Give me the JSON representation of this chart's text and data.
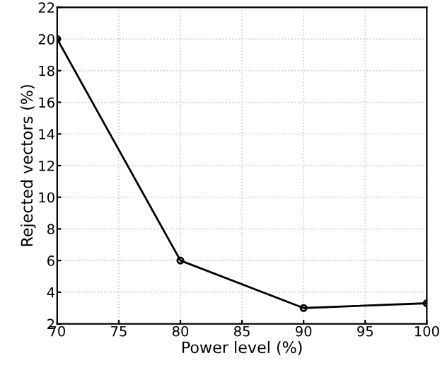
{
  "chart_data": {
    "type": "line",
    "xlabel": "Power level (%)",
    "ylabel": "Rejected vectors (%)",
    "x": [
      70,
      80,
      90,
      100
    ],
    "series": [
      {
        "color": "#000000",
        "values": [
          20,
          6,
          3,
          3.3
        ]
      }
    ],
    "xlim": [
      70,
      100
    ],
    "xticks": [
      70,
      75,
      80,
      85,
      90,
      95,
      100
    ],
    "ylim": [
      2,
      22
    ],
    "yticks": [
      2,
      4,
      6,
      8,
      10,
      12,
      14,
      16,
      18,
      20,
      22
    ],
    "grid": true,
    "marker": "circle",
    "line_style": "solid"
  }
}
